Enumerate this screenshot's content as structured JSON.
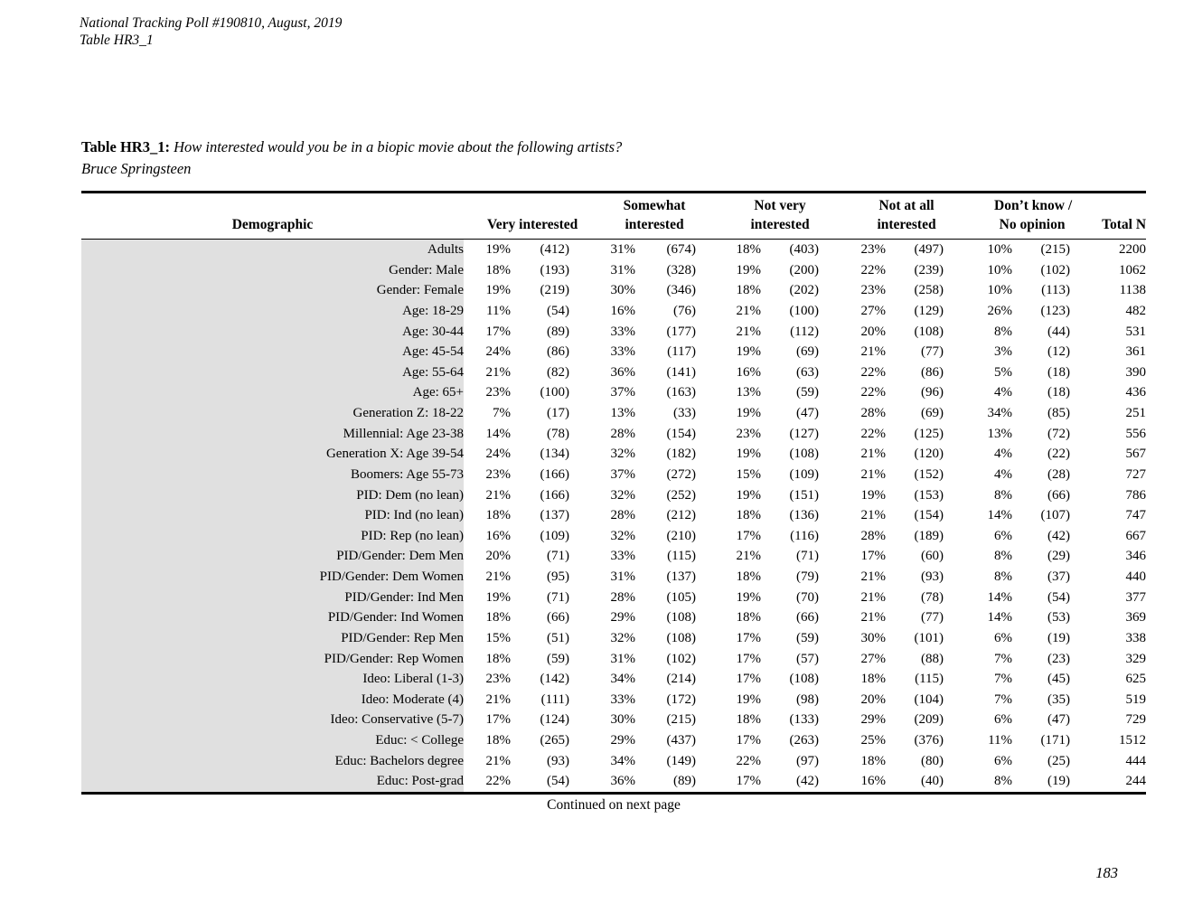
{
  "header": {
    "line1": "National Tracking Poll #190810, August, 2019",
    "line2": "Table HR3_1"
  },
  "title": {
    "label": "Table HR3_1:",
    "question": "How interested would you be in a biopic movie about the following artists?",
    "subject": "Bruce Springsteen"
  },
  "table": {
    "demographic_header": "Demographic",
    "category_headers": [
      {
        "line1": "",
        "line2": "Very interested"
      },
      {
        "line1": "Somewhat",
        "line2": "interested"
      },
      {
        "line1": "Not very",
        "line2": "interested"
      },
      {
        "line1": "Not at all",
        "line2": "interested"
      },
      {
        "line1": "Don’t know /",
        "line2": "No opinion"
      }
    ],
    "total_header": "Total N",
    "rows": [
      {
        "label": "Adults",
        "cells": [
          "19%",
          "(412)",
          "31%",
          "(674)",
          "18%",
          "(403)",
          "23%",
          "(497)",
          "10%",
          "(215)"
        ],
        "total": "2200"
      },
      {
        "label": "Gender: Male",
        "cells": [
          "18%",
          "(193)",
          "31%",
          "(328)",
          "19%",
          "(200)",
          "22%",
          "(239)",
          "10%",
          "(102)"
        ],
        "total": "1062"
      },
      {
        "label": "Gender: Female",
        "cells": [
          "19%",
          "(219)",
          "30%",
          "(346)",
          "18%",
          "(202)",
          "23%",
          "(258)",
          "10%",
          "(113)"
        ],
        "total": "1138"
      },
      {
        "label": "Age: 18-29",
        "cells": [
          "11%",
          "(54)",
          "16%",
          "(76)",
          "21%",
          "(100)",
          "27%",
          "(129)",
          "26%",
          "(123)"
        ],
        "total": "482"
      },
      {
        "label": "Age: 30-44",
        "cells": [
          "17%",
          "(89)",
          "33%",
          "(177)",
          "21%",
          "(112)",
          "20%",
          "(108)",
          "8%",
          "(44)"
        ],
        "total": "531"
      },
      {
        "label": "Age: 45-54",
        "cells": [
          "24%",
          "(86)",
          "33%",
          "(117)",
          "19%",
          "(69)",
          "21%",
          "(77)",
          "3%",
          "(12)"
        ],
        "total": "361"
      },
      {
        "label": "Age: 55-64",
        "cells": [
          "21%",
          "(82)",
          "36%",
          "(141)",
          "16%",
          "(63)",
          "22%",
          "(86)",
          "5%",
          "(18)"
        ],
        "total": "390"
      },
      {
        "label": "Age: 65+",
        "cells": [
          "23%",
          "(100)",
          "37%",
          "(163)",
          "13%",
          "(59)",
          "22%",
          "(96)",
          "4%",
          "(18)"
        ],
        "total": "436"
      },
      {
        "label": "Generation Z: 18-22",
        "cells": [
          "7%",
          "(17)",
          "13%",
          "(33)",
          "19%",
          "(47)",
          "28%",
          "(69)",
          "34%",
          "(85)"
        ],
        "total": "251"
      },
      {
        "label": "Millennial: Age 23-38",
        "cells": [
          "14%",
          "(78)",
          "28%",
          "(154)",
          "23%",
          "(127)",
          "22%",
          "(125)",
          "13%",
          "(72)"
        ],
        "total": "556"
      },
      {
        "label": "Generation X: Age 39-54",
        "cells": [
          "24%",
          "(134)",
          "32%",
          "(182)",
          "19%",
          "(108)",
          "21%",
          "(120)",
          "4%",
          "(22)"
        ],
        "total": "567"
      },
      {
        "label": "Boomers: Age 55-73",
        "cells": [
          "23%",
          "(166)",
          "37%",
          "(272)",
          "15%",
          "(109)",
          "21%",
          "(152)",
          "4%",
          "(28)"
        ],
        "total": "727"
      },
      {
        "label": "PID: Dem (no lean)",
        "cells": [
          "21%",
          "(166)",
          "32%",
          "(252)",
          "19%",
          "(151)",
          "19%",
          "(153)",
          "8%",
          "(66)"
        ],
        "total": "786"
      },
      {
        "label": "PID: Ind (no lean)",
        "cells": [
          "18%",
          "(137)",
          "28%",
          "(212)",
          "18%",
          "(136)",
          "21%",
          "(154)",
          "14%",
          "(107)"
        ],
        "total": "747"
      },
      {
        "label": "PID: Rep (no lean)",
        "cells": [
          "16%",
          "(109)",
          "32%",
          "(210)",
          "17%",
          "(116)",
          "28%",
          "(189)",
          "6%",
          "(42)"
        ],
        "total": "667"
      },
      {
        "label": "PID/Gender: Dem Men",
        "cells": [
          "20%",
          "(71)",
          "33%",
          "(115)",
          "21%",
          "(71)",
          "17%",
          "(60)",
          "8%",
          "(29)"
        ],
        "total": "346"
      },
      {
        "label": "PID/Gender: Dem Women",
        "cells": [
          "21%",
          "(95)",
          "31%",
          "(137)",
          "18%",
          "(79)",
          "21%",
          "(93)",
          "8%",
          "(37)"
        ],
        "total": "440"
      },
      {
        "label": "PID/Gender: Ind Men",
        "cells": [
          "19%",
          "(71)",
          "28%",
          "(105)",
          "19%",
          "(70)",
          "21%",
          "(78)",
          "14%",
          "(54)"
        ],
        "total": "377"
      },
      {
        "label": "PID/Gender: Ind Women",
        "cells": [
          "18%",
          "(66)",
          "29%",
          "(108)",
          "18%",
          "(66)",
          "21%",
          "(77)",
          "14%",
          "(53)"
        ],
        "total": "369"
      },
      {
        "label": "PID/Gender: Rep Men",
        "cells": [
          "15%",
          "(51)",
          "32%",
          "(108)",
          "17%",
          "(59)",
          "30%",
          "(101)",
          "6%",
          "(19)"
        ],
        "total": "338"
      },
      {
        "label": "PID/Gender: Rep Women",
        "cells": [
          "18%",
          "(59)",
          "31%",
          "(102)",
          "17%",
          "(57)",
          "27%",
          "(88)",
          "7%",
          "(23)"
        ],
        "total": "329"
      },
      {
        "label": "Ideo: Liberal (1-3)",
        "cells": [
          "23%",
          "(142)",
          "34%",
          "(214)",
          "17%",
          "(108)",
          "18%",
          "(115)",
          "7%",
          "(45)"
        ],
        "total": "625"
      },
      {
        "label": "Ideo: Moderate (4)",
        "cells": [
          "21%",
          "(111)",
          "33%",
          "(172)",
          "19%",
          "(98)",
          "20%",
          "(104)",
          "7%",
          "(35)"
        ],
        "total": "519"
      },
      {
        "label": "Ideo: Conservative (5-7)",
        "cells": [
          "17%",
          "(124)",
          "30%",
          "(215)",
          "18%",
          "(133)",
          "29%",
          "(209)",
          "6%",
          "(47)"
        ],
        "total": "729"
      },
      {
        "label": "Educ: < College",
        "cells": [
          "18%",
          "(265)",
          "29%",
          "(437)",
          "17%",
          "(263)",
          "25%",
          "(376)",
          "11%",
          "(171)"
        ],
        "total": "1512"
      },
      {
        "label": "Educ: Bachelors degree",
        "cells": [
          "21%",
          "(93)",
          "34%",
          "(149)",
          "22%",
          "(97)",
          "18%",
          "(80)",
          "6%",
          "(25)"
        ],
        "total": "444"
      },
      {
        "label": "Educ: Post-grad",
        "cells": [
          "22%",
          "(54)",
          "36%",
          "(89)",
          "17%",
          "(42)",
          "16%",
          "(40)",
          "8%",
          "(19)"
        ],
        "total": "244"
      }
    ]
  },
  "footer": {
    "continued": "Continued on next page",
    "page_number": "183"
  },
  "colors": {
    "demographic_shading": "#e0e0e0",
    "rule": "#000000",
    "background": "#ffffff"
  }
}
